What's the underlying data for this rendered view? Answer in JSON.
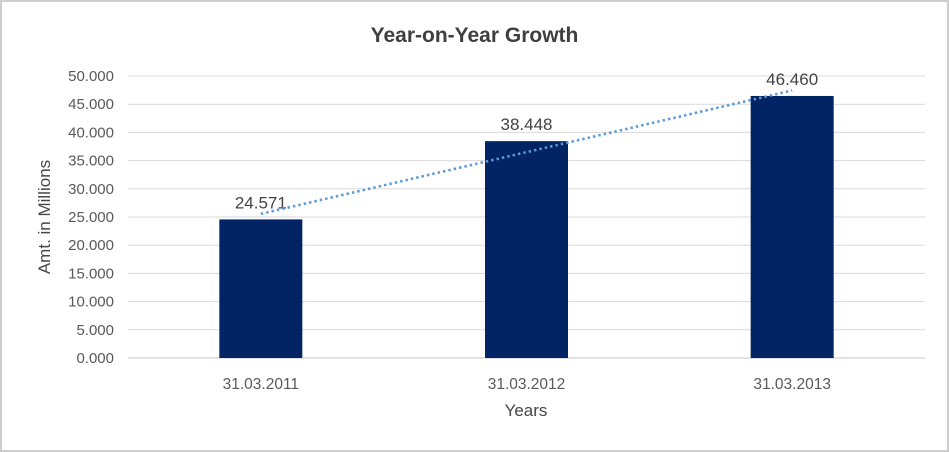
{
  "chart_data": {
    "type": "bar",
    "title": "Year-on-Year Growth",
    "xlabel": "Years",
    "ylabel": "Amt. in Millions",
    "categories": [
      "31.03.2011",
      "31.03.2012",
      "31.03.2013"
    ],
    "values": [
      24.571,
      38.448,
      46.46
    ],
    "data_labels": [
      "24.571",
      "38.448",
      "46.460"
    ],
    "y_ticks": [
      "0.000",
      "5.000",
      "10.000",
      "15.000",
      "20.000",
      "25.000",
      "30.000",
      "35.000",
      "40.000",
      "45.000",
      "50.000"
    ],
    "y_tick_step": 5,
    "ylim": [
      0,
      50
    ],
    "grid": true,
    "legend": "none",
    "bar_color": "#022364",
    "grid_color": "#d9d9d9",
    "axis_line_color": "#c6c6c6",
    "tick_text_color": "#595959",
    "data_label_color": "#444444",
    "trendline": {
      "type": "linear",
      "style": "dotted",
      "color": "#5b9bd5",
      "start_value": 25.55,
      "end_value": 47.44
    }
  }
}
